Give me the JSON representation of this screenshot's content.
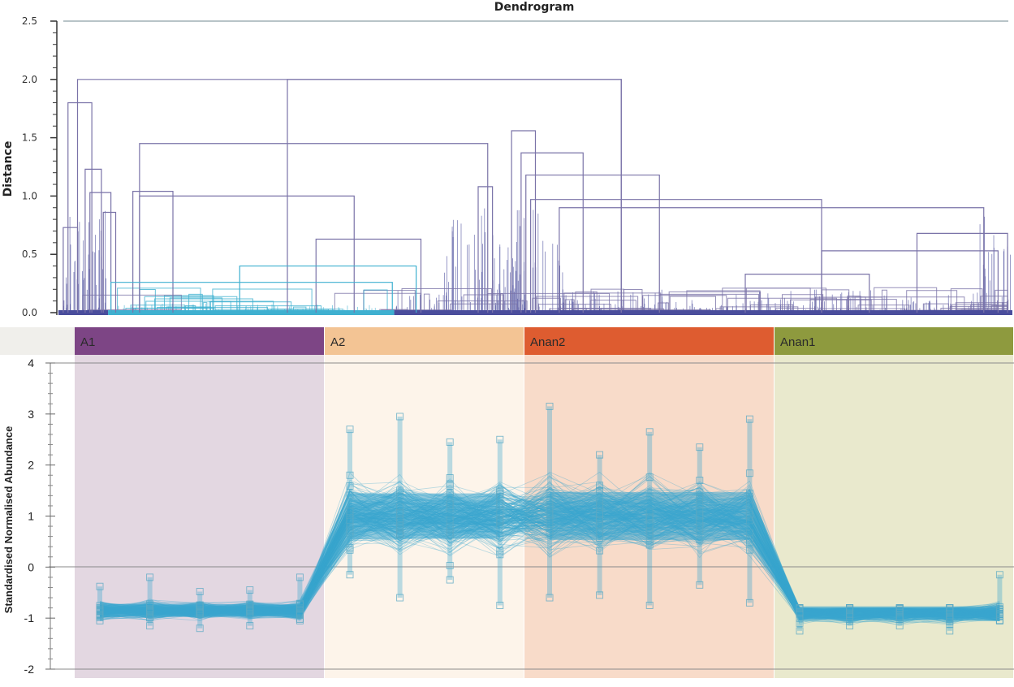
{
  "chart_data": [
    {
      "type": "dendrogram",
      "title": "Dendrogram",
      "xlabel": "",
      "ylabel": "Distance",
      "ylim": [
        0,
        2.5
      ],
      "yticks": [
        "0.0",
        "0.5",
        "1.0",
        "1.5",
        "2.0",
        "2.5"
      ],
      "ytick_values": [
        0,
        0.5,
        1.0,
        1.5,
        2.0,
        2.5
      ],
      "cutoff_line": 2.5,
      "colors": {
        "tree": "#7a73a8",
        "dense": "#4a4d9c",
        "highlight_cluster": "#3fb0d0",
        "cutoff": "#b8c4c8"
      },
      "merges": [
        {
          "name": "root",
          "height": 2.0,
          "left": 0.02,
          "right": 0.59,
          "parent": null
        },
        {
          "name": "left-outer",
          "height": 1.8,
          "left": 0.01,
          "right": 0.035
        },
        {
          "name": "left-a",
          "height": 1.23,
          "left": 0.028,
          "right": 0.045
        },
        {
          "name": "left-b",
          "height": 1.03,
          "left": 0.033,
          "right": 0.055
        },
        {
          "name": "left-c",
          "height": 0.86,
          "left": 0.047,
          "right": 0.06
        },
        {
          "name": "left-d",
          "height": 0.73,
          "left": 0.005,
          "right": 0.02
        },
        {
          "name": "mid-top",
          "height": 2.0,
          "left": 0.24,
          "right": 0.59
        },
        {
          "name": "mid-1",
          "height": 1.45,
          "left": 0.085,
          "right": 0.45
        },
        {
          "name": "mid-2",
          "height": 1.04,
          "left": 0.078,
          "right": 0.12
        },
        {
          "name": "mid-3",
          "height": 1.0,
          "left": 0.085,
          "right": 0.31
        },
        {
          "name": "mid-4",
          "height": 0.63,
          "left": 0.27,
          "right": 0.38
        },
        {
          "name": "cyan-1",
          "height": 0.4,
          "left": 0.19,
          "right": 0.375
        },
        {
          "name": "cyan-2",
          "height": 0.26,
          "left": 0.055,
          "right": 0.35
        },
        {
          "name": "mid-5",
          "height": 1.08,
          "left": 0.44,
          "right": 0.455
        },
        {
          "name": "right-top",
          "height": 1.56,
          "left": 0.475,
          "right": 0.5
        },
        {
          "name": "right-1",
          "height": 1.37,
          "left": 0.485,
          "right": 0.55
        },
        {
          "name": "right-2",
          "height": 1.18,
          "left": 0.49,
          "right": 0.63
        },
        {
          "name": "right-3",
          "height": 0.97,
          "left": 0.495,
          "right": 0.8
        },
        {
          "name": "right-4",
          "height": 0.9,
          "left": 0.525,
          "right": 0.97
        },
        {
          "name": "right-5",
          "height": 0.68,
          "left": 0.9,
          "right": 0.995
        },
        {
          "name": "right-6",
          "height": 0.53,
          "left": 0.8,
          "right": 0.985
        },
        {
          "name": "right-7",
          "height": 0.33,
          "left": 0.72,
          "right": 0.85
        }
      ]
    },
    {
      "type": "line",
      "title": "",
      "xlabel": "",
      "ylabel": "Standardised Normalised Abundance",
      "ylim": [
        -2,
        4
      ],
      "yticks": [
        "-2",
        "-1",
        "0",
        "1",
        "2",
        "3",
        "4"
      ],
      "ytick_values": [
        -2,
        -1,
        0,
        1,
        2,
        3,
        4
      ],
      "reference_line": 0,
      "series_color": "#3aa6cf",
      "marker": "square-open",
      "groups": [
        {
          "name": "A1",
          "header_color": "#7d4585",
          "bg_color": "#e3d7e1",
          "samples": 5,
          "center": -0.85,
          "spread_low": -1.2,
          "spread_high": -0.2,
          "sample_max": [
            -0.38,
            -0.2,
            -0.48,
            -0.45,
            -0.2
          ],
          "sample_min": [
            -1.05,
            -1.15,
            -1.2,
            -1.15,
            -1.05
          ]
        },
        {
          "name": "A2",
          "header_color": "#f3c494",
          "bg_color": "#fdf4ea",
          "samples": 4,
          "center": 1.0,
          "spread_low": -0.75,
          "spread_high": 2.95,
          "sample_max": [
            2.7,
            2.95,
            2.45,
            2.5
          ],
          "sample_min": [
            -0.15,
            -0.6,
            -0.25,
            -0.75
          ]
        },
        {
          "name": "Anan2",
          "header_color": "#de5c30",
          "bg_color": "#f8dbc9",
          "samples": 5,
          "center": 1.0,
          "spread_low": -0.75,
          "spread_high": 3.15,
          "sample_max": [
            3.15,
            2.2,
            2.65,
            2.35,
            2.9
          ],
          "sample_min": [
            -0.6,
            -0.55,
            -0.75,
            -0.35,
            -0.7
          ]
        },
        {
          "name": "Anan1",
          "header_color": "#8e9a3e",
          "bg_color": "#e9e9cd",
          "samples": 5,
          "center": -0.9,
          "spread_low": -1.25,
          "spread_high": -0.15,
          "sample_max": [
            -0.8,
            -0.8,
            -0.8,
            -0.8,
            -0.15
          ],
          "sample_min": [
            -1.25,
            -1.15,
            -1.15,
            -1.25,
            -1.05
          ]
        }
      ]
    }
  ]
}
